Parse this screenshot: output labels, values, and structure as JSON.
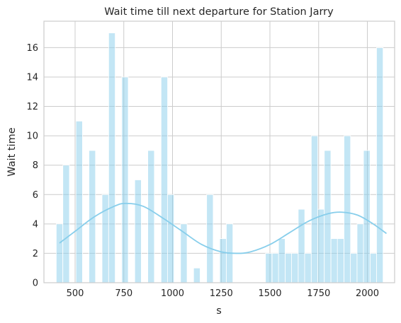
{
  "chart_data": {
    "type": "bar",
    "title": "Wait time till next departure for Station Jarry",
    "xlabel": "s",
    "ylabel": "Wait time",
    "xlim": [
      340,
      2140
    ],
    "ylim": [
      0,
      17.8
    ],
    "grid": true,
    "bin_width": 33.6,
    "x_ticks": [
      500,
      750,
      1000,
      1250,
      1500,
      1750,
      2000
    ],
    "y_ticks": [
      0,
      2,
      4,
      6,
      8,
      10,
      12,
      14,
      16
    ],
    "bars": [
      {
        "x": 420,
        "value": 4
      },
      {
        "x": 454,
        "value": 8
      },
      {
        "x": 521,
        "value": 11
      },
      {
        "x": 588,
        "value": 9
      },
      {
        "x": 655,
        "value": 6
      },
      {
        "x": 689,
        "value": 17
      },
      {
        "x": 756,
        "value": 14
      },
      {
        "x": 823,
        "value": 7
      },
      {
        "x": 890,
        "value": 9
      },
      {
        "x": 958,
        "value": 14
      },
      {
        "x": 991,
        "value": 6
      },
      {
        "x": 1058,
        "value": 4
      },
      {
        "x": 1125,
        "value": 1
      },
      {
        "x": 1192,
        "value": 6
      },
      {
        "x": 1259,
        "value": 3
      },
      {
        "x": 1293,
        "value": 4
      },
      {
        "x": 1494,
        "value": 2
      },
      {
        "x": 1528,
        "value": 2
      },
      {
        "x": 1561,
        "value": 3
      },
      {
        "x": 1595,
        "value": 2
      },
      {
        "x": 1628,
        "value": 2
      },
      {
        "x": 1662,
        "value": 5
      },
      {
        "x": 1695,
        "value": 2
      },
      {
        "x": 1729,
        "value": 10
      },
      {
        "x": 1762,
        "value": 5
      },
      {
        "x": 1796,
        "value": 9
      },
      {
        "x": 1830,
        "value": 3
      },
      {
        "x": 1863,
        "value": 3
      },
      {
        "x": 1897,
        "value": 10
      },
      {
        "x": 1930,
        "value": 2
      },
      {
        "x": 1964,
        "value": 4
      },
      {
        "x": 1997,
        "value": 9
      },
      {
        "x": 2031,
        "value": 2
      },
      {
        "x": 2064,
        "value": 16
      }
    ],
    "kde": {
      "x": [
        420,
        500,
        600,
        700,
        760,
        850,
        950,
        1050,
        1150,
        1250,
        1330,
        1400,
        1500,
        1600,
        1700,
        1800,
        1870,
        1950,
        2030,
        2098
      ],
      "y": [
        2.7,
        3.5,
        4.5,
        5.2,
        5.4,
        5.2,
        4.4,
        3.5,
        2.6,
        2.1,
        2.0,
        2.1,
        2.6,
        3.4,
        4.2,
        4.7,
        4.8,
        4.6,
        4.0,
        3.35
      ]
    }
  }
}
